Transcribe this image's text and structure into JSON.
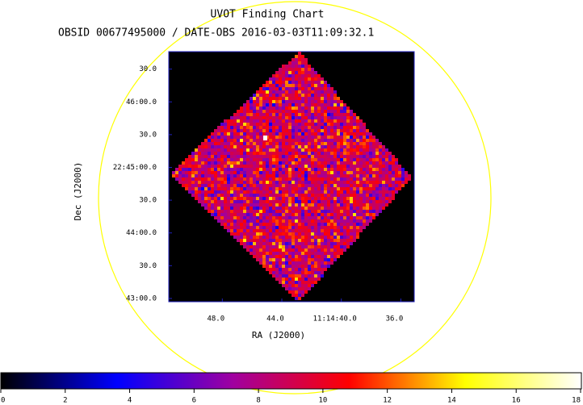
{
  "chart_data": {
    "type": "image",
    "title": "UVOT Finding Chart",
    "subtitle": "OBSID 00677495000 / DATE-OBS 2016-03-03T11:09:32.1",
    "x_label": "RA (J2000)",
    "y_label": "Dec (J2000)",
    "xlim": [
      51.6,
      35.1
    ],
    "xticks": [
      {
        "value": 48,
        "label": "48.0"
      },
      {
        "value": 44,
        "label": "44.0"
      },
      {
        "value": 40,
        "label": "11:14:40.0"
      },
      {
        "value": 36,
        "label": "36.0"
      }
    ],
    "ylim": [
      -3,
      226
    ],
    "yticks": [
      {
        "value": 210,
        "label": "30.0"
      },
      {
        "value": 180,
        "label": "46:00.0"
      },
      {
        "value": 150,
        "label": "30.0"
      },
      {
        "value": 120,
        "label": "22:45:00.0"
      },
      {
        "value": 90,
        "label": "30.0"
      },
      {
        "value": 60,
        "label": "44:00.0"
      },
      {
        "value": 30,
        "label": "30.0"
      },
      {
        "value": 0,
        "label": "43:00.0"
      }
    ],
    "colorbar": {
      "lim": [
        0,
        18
      ],
      "ticks": [
        0,
        2,
        4,
        6,
        8,
        10,
        12,
        14,
        16,
        18
      ],
      "colormap": [
        "#000000",
        "#0000ff",
        "#a000a0",
        "#ff0000",
        "#ffff00",
        "#ffffff"
      ]
    }
  }
}
